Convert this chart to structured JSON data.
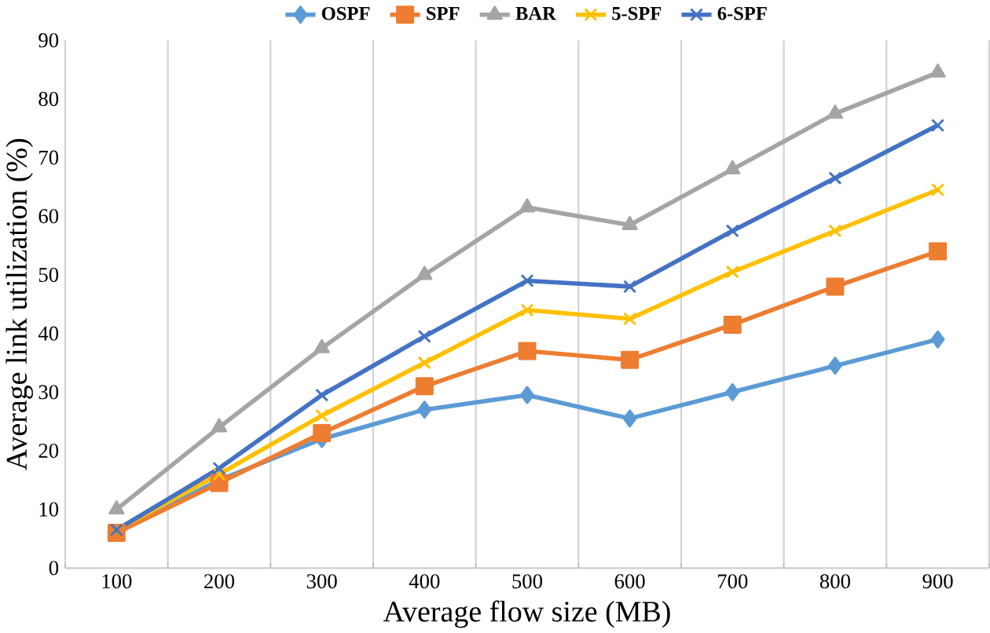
{
  "chart_data": {
    "type": "line",
    "xlabel": "Average flow size (MB)",
    "ylabel": "Average link utilization (%)",
    "categories": [
      "100",
      "200",
      "300",
      "400",
      "500",
      "600",
      "700",
      "800",
      "900"
    ],
    "ylim": [
      0,
      90
    ],
    "yticks": [
      0,
      10,
      20,
      30,
      40,
      50,
      60,
      70,
      80,
      90
    ],
    "grid": "x",
    "legend": "top",
    "line_style": "solid",
    "series": [
      {
        "name": "OSPF",
        "color": "#5b9bd5",
        "marker": "diamond",
        "values": [
          6,
          15,
          22,
          27,
          29.5,
          25.5,
          30,
          34.5,
          39
        ]
      },
      {
        "name": "SPF",
        "color": "#ed7d31",
        "marker": "square",
        "values": [
          6,
          14.5,
          23,
          31,
          37,
          35.5,
          41.5,
          48,
          54
        ]
      },
      {
        "name": "BAR",
        "color": "#a5a5a5",
        "marker": "triangle",
        "values": [
          10,
          24,
          37.5,
          50,
          61.5,
          58.5,
          68,
          77.5,
          84.5
        ]
      },
      {
        "name": "5-SPF",
        "color": "#ffc000",
        "marker": "cross",
        "values": [
          6.5,
          16,
          26,
          35,
          44,
          42.5,
          50.5,
          57.5,
          64.5
        ]
      },
      {
        "name": "6-SPF",
        "color": "#4472c4",
        "marker": "cross",
        "values": [
          6.5,
          17,
          29.5,
          39.5,
          49,
          48,
          57.5,
          66.5,
          75.5
        ]
      }
    ]
  }
}
